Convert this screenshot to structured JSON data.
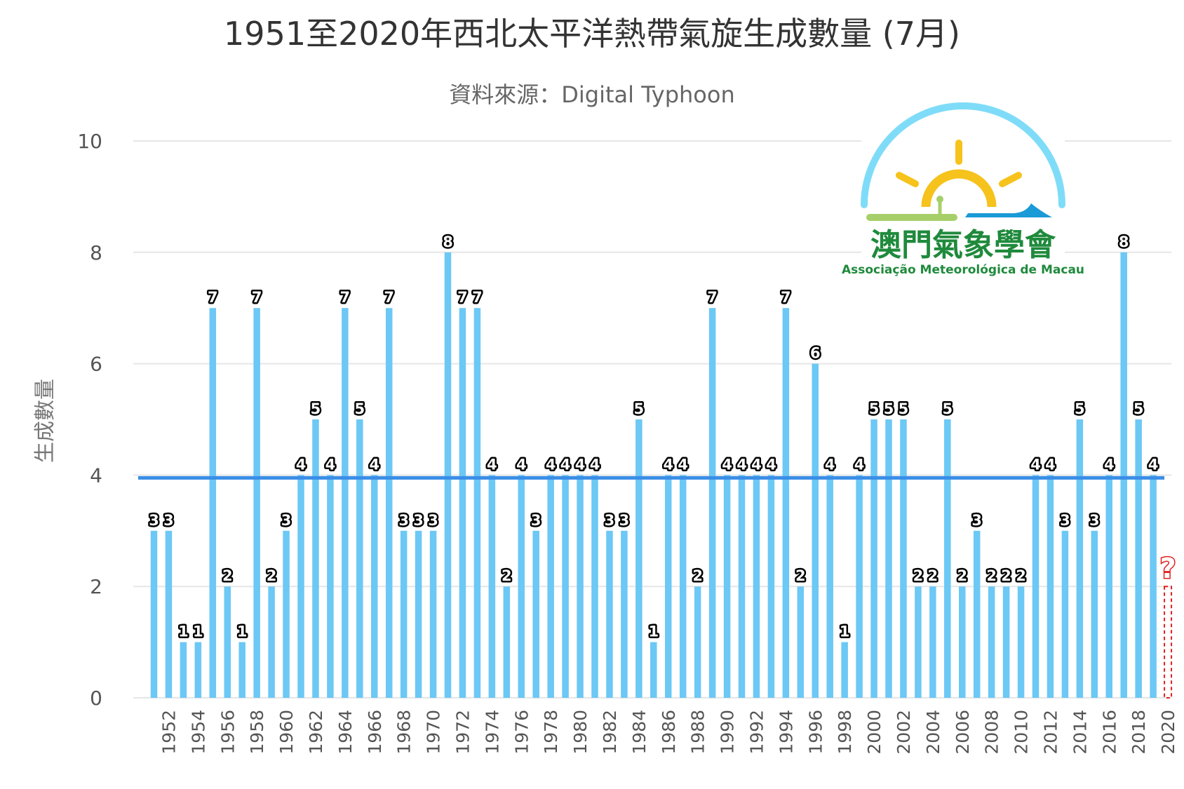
{
  "chart_data": {
    "type": "bar",
    "title": "1951至2020年西北太平洋熱帶氣旋生成數量 (7月)",
    "subtitle": "資料來源：Digital Typhoon",
    "ylabel": "生成數量",
    "xlabel": "",
    "ylim": [
      0,
      10
    ],
    "yticks": [
      0,
      2,
      4,
      6,
      8,
      10
    ],
    "grid": true,
    "categories": [
      1951,
      1952,
      1953,
      1954,
      1955,
      1956,
      1957,
      1958,
      1959,
      1960,
      1961,
      1962,
      1963,
      1964,
      1965,
      1966,
      1967,
      1968,
      1969,
      1970,
      1971,
      1972,
      1973,
      1974,
      1975,
      1976,
      1977,
      1978,
      1979,
      1980,
      1981,
      1982,
      1983,
      1984,
      1985,
      1986,
      1987,
      1988,
      1989,
      1990,
      1991,
      1992,
      1993,
      1994,
      1995,
      1996,
      1997,
      1998,
      1999,
      2000,
      2001,
      2002,
      2003,
      2004,
      2005,
      2006,
      2007,
      2008,
      2009,
      2010,
      2011,
      2012,
      2013,
      2014,
      2015,
      2016,
      2017,
      2018,
      2019,
      2020
    ],
    "x_tick_labels": [
      "1952",
      "1954",
      "1956",
      "1958",
      "1960",
      "1962",
      "1964",
      "1966",
      "1968",
      "1970",
      "1972",
      "1974",
      "1976",
      "1978",
      "1980",
      "1982",
      "1984",
      "1986",
      "1988",
      "1990",
      "1992",
      "1994",
      "1996",
      "1998",
      "2000",
      "2002",
      "2004",
      "2006",
      "2008",
      "2010",
      "2012",
      "2014",
      "2016",
      "2018",
      "2020"
    ],
    "values": [
      3,
      3,
      1,
      1,
      7,
      2,
      1,
      7,
      2,
      3,
      4,
      5,
      4,
      7,
      5,
      4,
      7,
      3,
      3,
      3,
      8,
      7,
      7,
      4,
      2,
      4,
      3,
      4,
      4,
      4,
      4,
      3,
      3,
      5,
      1,
      4,
      4,
      2,
      7,
      4,
      4,
      4,
      4,
      7,
      2,
      6,
      4,
      1,
      4,
      5,
      5,
      5,
      2,
      2,
      5,
      2,
      3,
      2,
      2,
      2,
      4,
      4,
      3,
      5,
      3,
      4,
      8,
      5,
      4,
      null
    ],
    "mean_line": 3.95,
    "unknown_marker": {
      "category": 2020,
      "label": "?"
    },
    "bar_color": "#6cc8f5",
    "mean_line_color": "#3a8ee6"
  },
  "logo": {
    "name_cn": "澳門氣象學會",
    "name_pt": "Associação Meteorológica de Macau"
  }
}
